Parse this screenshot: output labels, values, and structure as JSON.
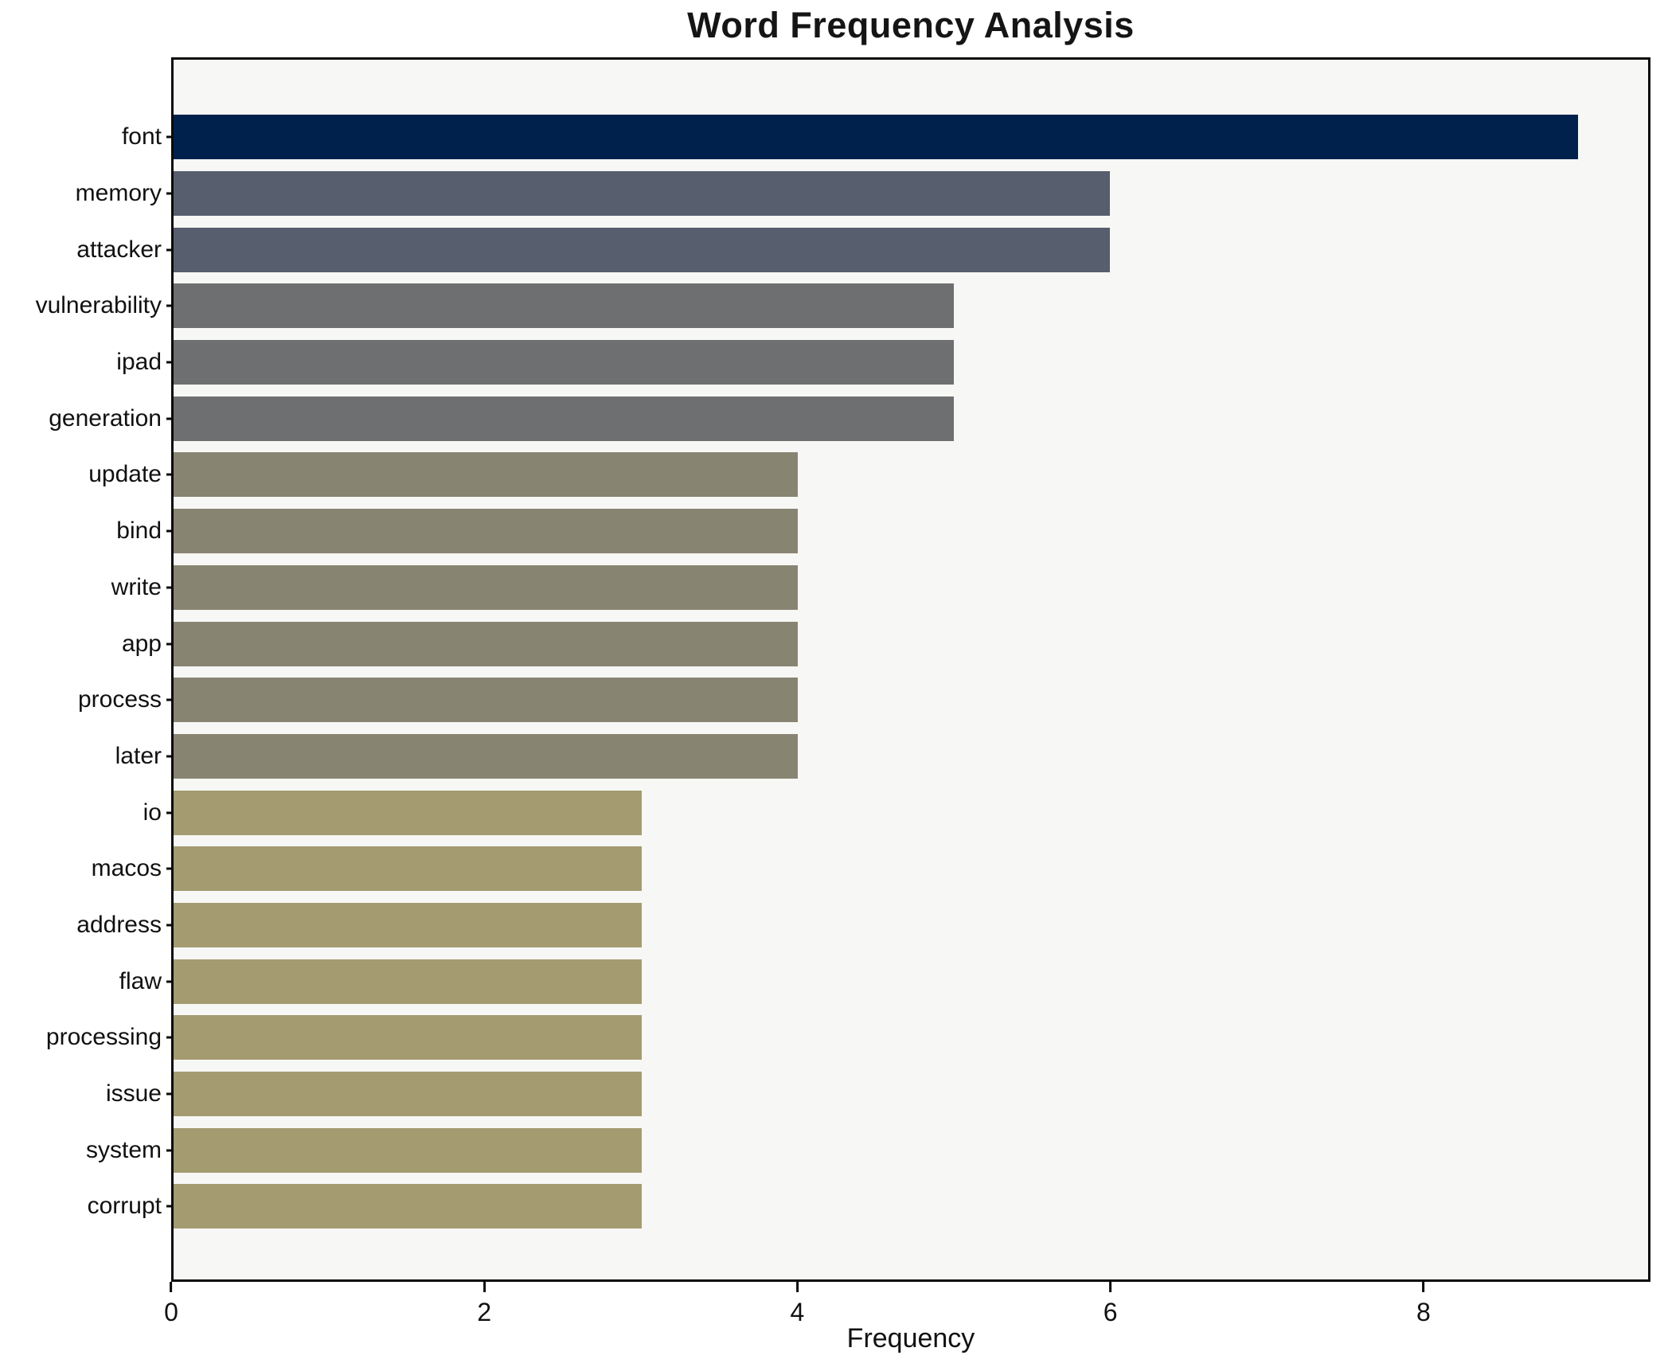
{
  "chart_data": {
    "type": "bar",
    "orientation": "horizontal",
    "title": "Word Frequency Analysis",
    "xlabel": "Frequency",
    "ylabel": "",
    "categories": [
      "font",
      "memory",
      "attacker",
      "vulnerability",
      "ipad",
      "generation",
      "update",
      "bind",
      "write",
      "app",
      "process",
      "later",
      "io",
      "macos",
      "address",
      "flaw",
      "processing",
      "issue",
      "system",
      "corrupt"
    ],
    "values": [
      9,
      6,
      6,
      5,
      5,
      5,
      4,
      4,
      4,
      4,
      4,
      4,
      3,
      3,
      3,
      3,
      3,
      3,
      3,
      3
    ],
    "bar_colors": [
      "#01214d",
      "#575e6e",
      "#575e6e",
      "#6e6f71",
      "#6e6f71",
      "#6e6f71",
      "#888472",
      "#888472",
      "#888472",
      "#888472",
      "#888472",
      "#888472",
      "#a49b70",
      "#a49b70",
      "#a49b70",
      "#a49b70",
      "#a49b70",
      "#a49b70",
      "#a49b70",
      "#a49b70"
    ],
    "xticks": [
      0,
      2,
      4,
      6,
      8
    ],
    "xlim": [
      0,
      9.45
    ],
    "grid": false,
    "legend": false,
    "plot_background": "#f7f7f5",
    "figure_background": "#ffffff",
    "spine_color": "#0a0a0a"
  }
}
